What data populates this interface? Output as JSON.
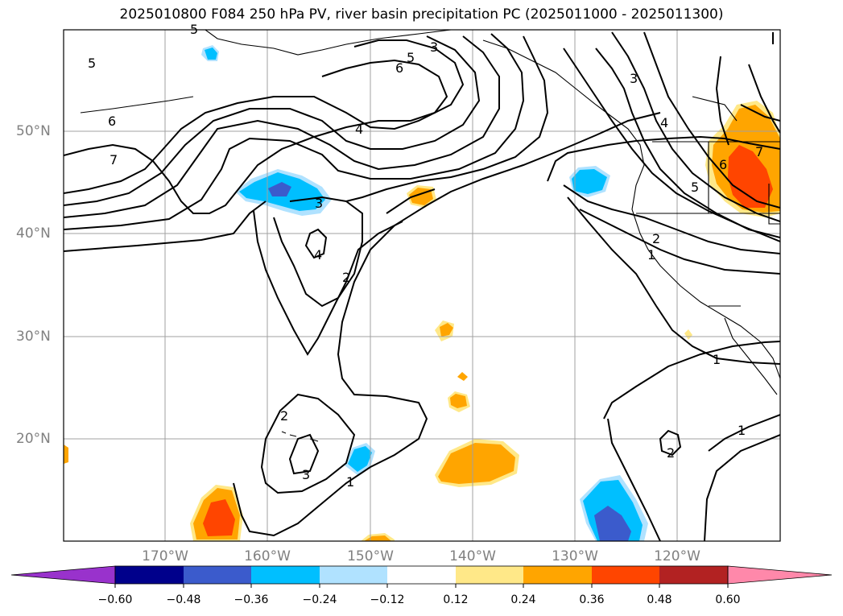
{
  "title": "2025010800 F084 250 hPa PV, river basin precipitation PC (2025011000 - 2025011300)",
  "lon_labels": [
    "170°W",
    "160°W",
    "150°W",
    "140°W",
    "130°W",
    "120°W"
  ],
  "lat_labels": [
    "50°N",
    "40°N",
    "30°N",
    "20°N"
  ],
  "colorbar": {
    "ticks": [
      "−0.60",
      "−0.48",
      "−0.36",
      "−0.24",
      "−0.12",
      "0.12",
      "0.24",
      "0.36",
      "0.48",
      "0.60"
    ],
    "colors": [
      "#9932cc",
      "#00008b",
      "#3b5bcc",
      "#00bfff",
      "#b0e2ff",
      "#ffffff",
      "#ffe888",
      "#ffa500",
      "#ff4500",
      "#b22222",
      "#ff88aa"
    ]
  },
  "contour_labels": [
    "5",
    "3",
    "6",
    "5",
    "6",
    "7",
    "4",
    "3",
    "4",
    "2",
    "2",
    "3",
    "1",
    "3",
    "4",
    "7",
    "6",
    "5",
    "2",
    "1",
    "1",
    "1",
    "2",
    "5"
  ]
}
